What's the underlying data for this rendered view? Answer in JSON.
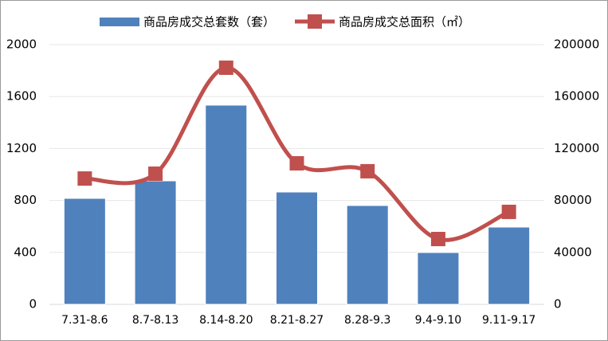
{
  "chart_data": {
    "type": "bar",
    "categories": [
      "7.31-8.6",
      "8.7-8.13",
      "8.14-8.20",
      "8.21-8.27",
      "8.28-9.3",
      "9.4-9.10",
      "9.11-9.17"
    ],
    "series": [
      {
        "name": "商品房成交总套数（套）",
        "type": "bar",
        "color": "#4f81bd",
        "values": [
          816,
          951,
          1534,
          865,
          761,
          399,
          595
        ]
      },
      {
        "name": "商品房成交总面积（㎡）",
        "type": "line",
        "axis": "y2",
        "color": "#c0504d",
        "values": [
          96900,
          100600,
          182200,
          108600,
          102500,
          50300,
          71200
        ]
      }
    ],
    "ylim": [
      0,
      2000
    ],
    "yticks": [
      0,
      400,
      800,
      1200,
      1600,
      2000
    ],
    "y2lim": [
      0,
      200000
    ],
    "y2ticks": [
      0,
      40000,
      80000,
      120000,
      160000,
      200000
    ],
    "grid": true
  }
}
